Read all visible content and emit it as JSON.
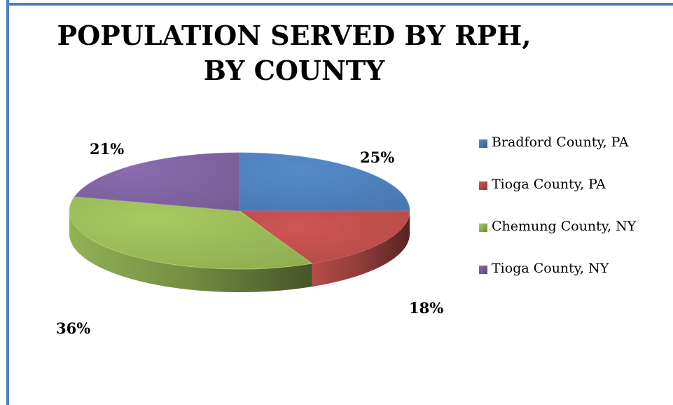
{
  "chart_data": {
    "type": "pie",
    "style": "3d",
    "title_lines": [
      "POPULATION SERVED BY RPH,",
      "BY COUNTY"
    ],
    "slices": [
      {
        "label": "Bradford County, PA",
        "value": 25,
        "value_label": "25%",
        "color": "#4f81bd"
      },
      {
        "label": "Tioga County, PA",
        "value": 18,
        "value_label": "18%",
        "color": "#c0504d"
      },
      {
        "label": "Chemung County, NY",
        "value": 36,
        "value_label": "36%",
        "color": "#9bbb59"
      },
      {
        "label": "Tioga County, NY",
        "value": 21,
        "value_label": "21%",
        "color": "#8064a2"
      }
    ],
    "legend_position": "right"
  }
}
